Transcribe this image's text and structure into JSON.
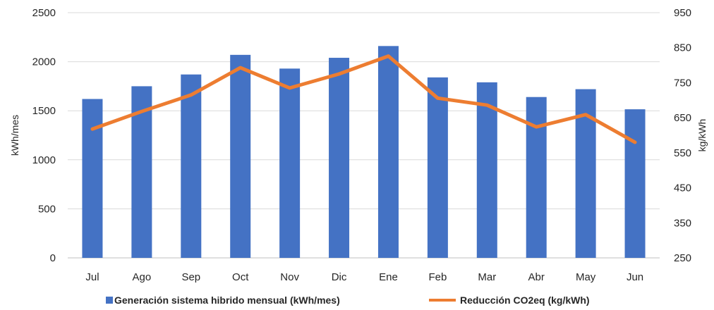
{
  "chart_data": {
    "type": "bar+line",
    "categories": [
      "Jul",
      "Ago",
      "Sep",
      "Oct",
      "Nov",
      "Dic",
      "Ene",
      "Feb",
      "Mar",
      "Abr",
      "May",
      "Jun"
    ],
    "series": [
      {
        "name": "Generación sistema hibrido mensual (kWh/mes)",
        "type": "bar",
        "axis": "left",
        "color": "#4472C4",
        "values": [
          1620,
          1750,
          1870,
          2070,
          1930,
          2040,
          2160,
          1840,
          1790,
          1640,
          1720,
          1515
        ]
      },
      {
        "name": "Reducción CO2eq (kg/kWh)",
        "type": "line",
        "axis": "right",
        "color": "#ED7D31",
        "values": [
          618,
          668,
          715,
          793,
          735,
          775,
          826,
          706,
          686,
          624,
          659,
          580
        ]
      }
    ],
    "ylabel": "kWh/mes",
    "ylabel_right": "kg/kWh",
    "ylim": [
      0,
      2500
    ],
    "ylim_right": [
      250,
      950
    ],
    "yticks": [
      "0",
      "500",
      "1000",
      "1500",
      "2000",
      "2500"
    ],
    "yticks_right": [
      "250",
      "350",
      "450",
      "550",
      "650",
      "750",
      "850",
      "950"
    ],
    "grid": true,
    "legend": "bottom"
  }
}
